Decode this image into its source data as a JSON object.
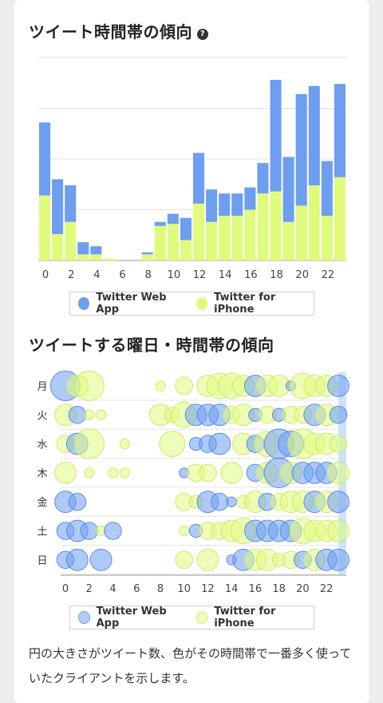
{
  "colors": {
    "web": "#6e9ef0",
    "iphone": "#e0fb7c",
    "web_stroke": "#4f82e0",
    "iphone_stroke": "#c6e45a"
  },
  "section1": {
    "title": "ツイート時間帯の傾向",
    "help_icon": "question-circle-icon",
    "help_glyph": "?"
  },
  "section2": {
    "title": "ツイートする曜日・時間帯の傾向"
  },
  "legend": {
    "web": "Twitter Web App",
    "iphone": "Twitter for iPhone"
  },
  "note": "円の大きさがツイート数、色がその時間帯で一番多く使っていたクライアントを示します。",
  "chart_data": [
    {
      "type": "bar",
      "stacked": true,
      "categories": [
        0,
        1,
        2,
        3,
        4,
        5,
        6,
        7,
        8,
        9,
        10,
        11,
        12,
        13,
        14,
        15,
        16,
        17,
        18,
        19,
        20,
        21,
        22,
        23
      ],
      "x_tick_labels": [
        "0",
        "2",
        "4",
        "6",
        "8",
        "10",
        "12",
        "14",
        "16",
        "18",
        "20",
        "22"
      ],
      "series": [
        {
          "name": "Twitter for iPhone",
          "values": [
            32,
            13,
            19,
            3,
            3,
            1,
            0,
            0,
            3,
            17,
            18,
            10,
            28,
            19,
            22,
            22,
            25,
            33,
            34,
            19,
            27,
            37,
            22,
            41
          ]
        },
        {
          "name": "Twitter Web App",
          "values": [
            36,
            27,
            18,
            6,
            4,
            0,
            0,
            0,
            1,
            2,
            5,
            11,
            25,
            16,
            11,
            11,
            11,
            15,
            55,
            32,
            55,
            49,
            27,
            46
          ]
        }
      ],
      "ylim": [
        0,
        100
      ],
      "grid": true
    },
    {
      "type": "scatter",
      "y_categories": [
        "月",
        "火",
        "水",
        "木",
        "金",
        "土",
        "日"
      ],
      "x_tick_labels": [
        "0",
        "2",
        "4",
        "6",
        "8",
        "10",
        "12",
        "14",
        "16",
        "18",
        "20",
        "22"
      ],
      "xlim": [
        0,
        23
      ],
      "size_meaning": "tweet count",
      "color_meaning": "most used client",
      "points": [
        {
          "day": 0,
          "hour": 0,
          "size": 3,
          "client": "web"
        },
        {
          "day": 0,
          "hour": 1,
          "size": 2,
          "client": "iphone"
        },
        {
          "day": 0,
          "hour": 2,
          "size": 3,
          "client": "iphone"
        },
        {
          "day": 0,
          "hour": 8,
          "size": 0.6,
          "client": "iphone"
        },
        {
          "day": 0,
          "hour": 10,
          "size": 1.5,
          "client": "iphone"
        },
        {
          "day": 0,
          "hour": 12,
          "size": 2,
          "client": "iphone"
        },
        {
          "day": 0,
          "hour": 13,
          "size": 2.5,
          "client": "iphone"
        },
        {
          "day": 0,
          "hour": 14,
          "size": 2.5,
          "client": "iphone"
        },
        {
          "day": 0,
          "hour": 15,
          "size": 2,
          "client": "iphone"
        },
        {
          "day": 0,
          "hour": 16,
          "size": 2,
          "client": "web"
        },
        {
          "day": 0,
          "hour": 17,
          "size": 2,
          "client": "iphone"
        },
        {
          "day": 0,
          "hour": 18,
          "size": 2,
          "client": "iphone"
        },
        {
          "day": 0,
          "hour": 19,
          "size": 0.6,
          "client": "web"
        },
        {
          "day": 0,
          "hour": 20,
          "size": 2.5,
          "client": "iphone"
        },
        {
          "day": 0,
          "hour": 21,
          "size": 2,
          "client": "iphone"
        },
        {
          "day": 0,
          "hour": 22,
          "size": 2,
          "client": "iphone"
        },
        {
          "day": 0,
          "hour": 23,
          "size": 2,
          "client": "web"
        },
        {
          "day": 1,
          "hour": 0,
          "size": 2,
          "client": "iphone"
        },
        {
          "day": 1,
          "hour": 1,
          "size": 1.5,
          "client": "web"
        },
        {
          "day": 1,
          "hour": 2,
          "size": 0.6,
          "client": "iphone"
        },
        {
          "day": 1,
          "hour": 3,
          "size": 0.6,
          "client": "iphone"
        },
        {
          "day": 1,
          "hour": 8,
          "size": 2,
          "client": "iphone"
        },
        {
          "day": 1,
          "hour": 9,
          "size": 1.2,
          "client": "iphone"
        },
        {
          "day": 1,
          "hour": 10,
          "size": 2.5,
          "client": "iphone"
        },
        {
          "day": 1,
          "hour": 11,
          "size": 2,
          "client": "web"
        },
        {
          "day": 1,
          "hour": 12,
          "size": 2,
          "client": "web"
        },
        {
          "day": 1,
          "hour": 13,
          "size": 2,
          "client": "web"
        },
        {
          "day": 1,
          "hour": 14,
          "size": 1.5,
          "client": "iphone"
        },
        {
          "day": 1,
          "hour": 15,
          "size": 2,
          "client": "iphone"
        },
        {
          "day": 1,
          "hour": 16,
          "size": 1,
          "client": "web"
        },
        {
          "day": 1,
          "hour": 17,
          "size": 1.5,
          "client": "iphone"
        },
        {
          "day": 1,
          "hour": 18,
          "size": 1,
          "client": "web"
        },
        {
          "day": 1,
          "hour": 19,
          "size": 1.5,
          "client": "iphone"
        },
        {
          "day": 1,
          "hour": 20,
          "size": 1.5,
          "client": "iphone"
        },
        {
          "day": 1,
          "hour": 21,
          "size": 2,
          "client": "web"
        },
        {
          "day": 1,
          "hour": 22,
          "size": 2,
          "client": "iphone"
        },
        {
          "day": 1,
          "hour": 23,
          "size": 1.5,
          "client": "web"
        },
        {
          "day": 2,
          "hour": 0,
          "size": 1.5,
          "client": "iphone"
        },
        {
          "day": 2,
          "hour": 1,
          "size": 2,
          "client": "web"
        },
        {
          "day": 2,
          "hour": 2,
          "size": 3,
          "client": "iphone"
        },
        {
          "day": 2,
          "hour": 5,
          "size": 0.6,
          "client": "iphone"
        },
        {
          "day": 2,
          "hour": 9,
          "size": 2.5,
          "client": "iphone"
        },
        {
          "day": 2,
          "hour": 11,
          "size": 1,
          "client": "web"
        },
        {
          "day": 2,
          "hour": 12,
          "size": 1.5,
          "client": "web"
        },
        {
          "day": 2,
          "hour": 13,
          "size": 2,
          "client": "web"
        },
        {
          "day": 2,
          "hour": 15,
          "size": 2,
          "client": "iphone"
        },
        {
          "day": 2,
          "hour": 16,
          "size": 1.5,
          "client": "web"
        },
        {
          "day": 2,
          "hour": 17,
          "size": 2.5,
          "client": "iphone"
        },
        {
          "day": 2,
          "hour": 18,
          "size": 3,
          "client": "web"
        },
        {
          "day": 2,
          "hour": 19,
          "size": 2.5,
          "client": "web"
        },
        {
          "day": 2,
          "hour": 20,
          "size": 3,
          "client": "iphone"
        },
        {
          "day": 2,
          "hour": 21,
          "size": 2,
          "client": "iphone"
        },
        {
          "day": 2,
          "hour": 22,
          "size": 2,
          "client": "iphone"
        },
        {
          "day": 2,
          "hour": 23,
          "size": 1.5,
          "client": "iphone"
        },
        {
          "day": 3,
          "hour": 0,
          "size": 2,
          "client": "iphone"
        },
        {
          "day": 3,
          "hour": 2,
          "size": 0.6,
          "client": "iphone"
        },
        {
          "day": 3,
          "hour": 4,
          "size": 0.6,
          "client": "iphone"
        },
        {
          "day": 3,
          "hour": 5,
          "size": 0.6,
          "client": "iphone"
        },
        {
          "day": 3,
          "hour": 10,
          "size": 0.6,
          "client": "web"
        },
        {
          "day": 3,
          "hour": 11,
          "size": 1.5,
          "client": "iphone"
        },
        {
          "day": 3,
          "hour": 12,
          "size": 1.5,
          "client": "iphone"
        },
        {
          "day": 3,
          "hour": 14,
          "size": 2,
          "client": "iphone"
        },
        {
          "day": 3,
          "hour": 16,
          "size": 1.5,
          "client": "web"
        },
        {
          "day": 3,
          "hour": 17,
          "size": 2,
          "client": "iphone"
        },
        {
          "day": 3,
          "hour": 18,
          "size": 3,
          "client": "web"
        },
        {
          "day": 3,
          "hour": 19,
          "size": 2,
          "client": "iphone"
        },
        {
          "day": 3,
          "hour": 20,
          "size": 2,
          "client": "web"
        },
        {
          "day": 3,
          "hour": 21,
          "size": 2,
          "client": "web"
        },
        {
          "day": 3,
          "hour": 22,
          "size": 2,
          "client": "web"
        },
        {
          "day": 3,
          "hour": 23,
          "size": 2,
          "client": "iphone"
        },
        {
          "day": 4,
          "hour": 0,
          "size": 2,
          "client": "web"
        },
        {
          "day": 4,
          "hour": 1,
          "size": 1.5,
          "client": "web"
        },
        {
          "day": 4,
          "hour": 10,
          "size": 1.5,
          "client": "iphone"
        },
        {
          "day": 4,
          "hour": 11,
          "size": 1,
          "client": "iphone"
        },
        {
          "day": 4,
          "hour": 12,
          "size": 2,
          "client": "web"
        },
        {
          "day": 4,
          "hour": 13,
          "size": 1.5,
          "client": "web"
        },
        {
          "day": 4,
          "hour": 14,
          "size": 0.6,
          "client": "web"
        },
        {
          "day": 4,
          "hour": 15,
          "size": 1,
          "client": "iphone"
        },
        {
          "day": 4,
          "hour": 16,
          "size": 2,
          "client": "iphone"
        },
        {
          "day": 4,
          "hour": 17,
          "size": 1.5,
          "client": "web"
        },
        {
          "day": 4,
          "hour": 18,
          "size": 1.5,
          "client": "iphone"
        },
        {
          "day": 4,
          "hour": 19,
          "size": 2,
          "client": "iphone"
        },
        {
          "day": 4,
          "hour": 20,
          "size": 2,
          "client": "iphone"
        },
        {
          "day": 4,
          "hour": 21,
          "size": 2,
          "client": "web"
        },
        {
          "day": 4,
          "hour": 22,
          "size": 2,
          "client": "iphone"
        },
        {
          "day": 4,
          "hour": 23,
          "size": 2,
          "client": "web"
        },
        {
          "day": 5,
          "hour": 0,
          "size": 1.5,
          "client": "web"
        },
        {
          "day": 5,
          "hour": 1,
          "size": 2,
          "client": "web"
        },
        {
          "day": 5,
          "hour": 2,
          "size": 1.5,
          "client": "web"
        },
        {
          "day": 5,
          "hour": 3,
          "size": 0.6,
          "client": "iphone"
        },
        {
          "day": 5,
          "hour": 4,
          "size": 1.5,
          "client": "web"
        },
        {
          "day": 5,
          "hour": 10,
          "size": 0.6,
          "client": "iphone"
        },
        {
          "day": 5,
          "hour": 11,
          "size": 1,
          "client": "web"
        },
        {
          "day": 5,
          "hour": 12,
          "size": 1.5,
          "client": "iphone"
        },
        {
          "day": 5,
          "hour": 13,
          "size": 1.5,
          "client": "iphone"
        },
        {
          "day": 5,
          "hour": 14,
          "size": 2,
          "client": "iphone"
        },
        {
          "day": 5,
          "hour": 15,
          "size": 2.5,
          "client": "iphone"
        },
        {
          "day": 5,
          "hour": 16,
          "size": 2,
          "client": "web"
        },
        {
          "day": 5,
          "hour": 17,
          "size": 2,
          "client": "web"
        },
        {
          "day": 5,
          "hour": 18,
          "size": 2,
          "client": "web"
        },
        {
          "day": 5,
          "hour": 19,
          "size": 2,
          "client": "web"
        },
        {
          "day": 5,
          "hour": 20,
          "size": 2.5,
          "client": "iphone"
        },
        {
          "day": 5,
          "hour": 21,
          "size": 2,
          "client": "iphone"
        },
        {
          "day": 5,
          "hour": 22,
          "size": 2,
          "client": "iphone"
        },
        {
          "day": 5,
          "hour": 23,
          "size": 2,
          "client": "iphone"
        },
        {
          "day": 6,
          "hour": 0,
          "size": 1.5,
          "client": "web"
        },
        {
          "day": 6,
          "hour": 1,
          "size": 2,
          "client": "web"
        },
        {
          "day": 6,
          "hour": 3,
          "size": 2,
          "client": "web"
        },
        {
          "day": 6,
          "hour": 10,
          "size": 1.5,
          "client": "iphone"
        },
        {
          "day": 6,
          "hour": 12,
          "size": 2,
          "client": "iphone"
        },
        {
          "day": 6,
          "hour": 14,
          "size": 0.6,
          "client": "web"
        },
        {
          "day": 6,
          "hour": 15,
          "size": 2,
          "client": "web"
        },
        {
          "day": 6,
          "hour": 16,
          "size": 2,
          "client": "iphone"
        },
        {
          "day": 6,
          "hour": 17,
          "size": 2,
          "client": "iphone"
        },
        {
          "day": 6,
          "hour": 18,
          "size": 1,
          "client": "iphone"
        },
        {
          "day": 6,
          "hour": 19,
          "size": 1.5,
          "client": "iphone"
        },
        {
          "day": 6,
          "hour": 20,
          "size": 1.5,
          "client": "web"
        },
        {
          "day": 6,
          "hour": 21,
          "size": 2,
          "client": "iphone"
        },
        {
          "day": 6,
          "hour": 22,
          "size": 2,
          "client": "web"
        },
        {
          "day": 6,
          "hour": 23,
          "size": 2,
          "client": "web"
        }
      ]
    }
  ]
}
